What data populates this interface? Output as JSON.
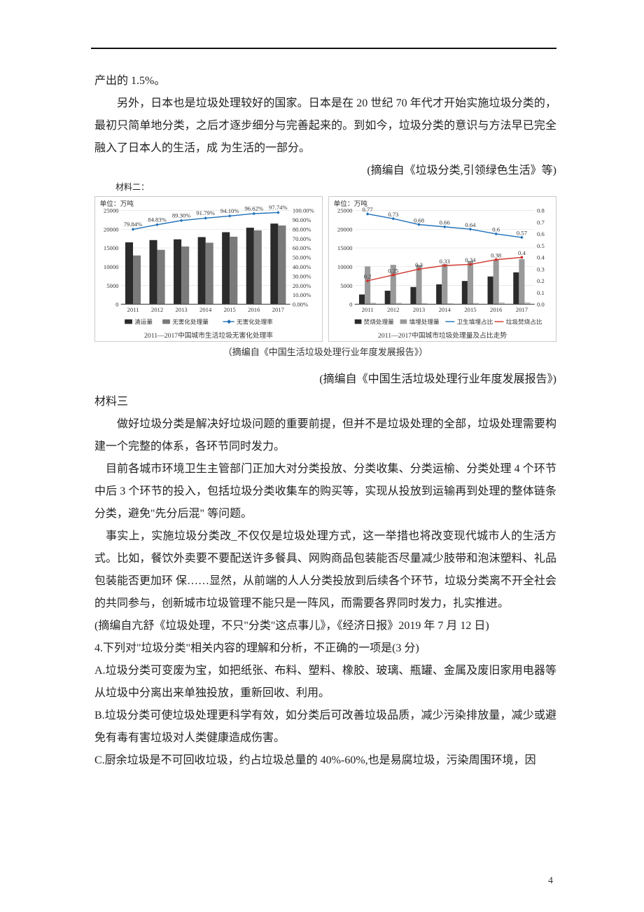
{
  "body": {
    "p1": "产出的 1.5%。",
    "p2": "另外，日本也是垃圾处理较好的国家。日本是在 20 世纪 70 年代才开始实施垃圾分类的，最初只简单地分类，之后才逐步细分与完善起来的。到如今，垃圾分类的意识与方法早已完全融入了日本人的生活，成 为生活的一部分。",
    "p3_src": "(摘编自《垃圾分类,引领绿色生活》等)",
    "mat2_label": "材料二：",
    "fig_src_inner": "（摘编自《中国生活垃圾处理行业年度发展报告》）",
    "fig_src_line": "(摘编自《中国生活垃圾处理行业年度发展报告》)",
    "mat3_label": "材料三",
    "p4": "做好垃圾分类是解决好垃圾问题的重要前提，但并不是垃圾处理的全部，垃圾处理需要构建一个完整的体系，各环节同时发力。",
    "p5": "目前各城市环境卫生主管部门正加大对分类投放、分类收集、分类运榆、分类处理 4 个环节中后 3 个环节的投入，包括垃圾分类收集车的购买等，实现从投放到运输再到处理的整体链条分类，避免\"先分后混\"  等问题。",
    "p6": "事实上，实施垃圾分类改_不仅仅是垃圾处理方式，这一举措也将改变现代城市人的生活方式。比如，餐饮外卖要不要配送许多餐具、网购商品包装能否尽量减少肢带和泡沫塑料、礼品包装能否更加环  保……显然，从前端的人人分类投放到后续各个环节，垃圾分类离不开全社会的共同参与，创新城市垃圾管理不能只是一阵风，而需要各界同时发力，扎实推进。",
    "p6_src": "(摘编自亢舒《垃圾处理，不只\"分类\"这点事儿》，《经济日报》2019 年 7 月 12 日)",
    "q4": "4.下列对\"垃圾分类\"相关内容的理解和分析，不正确的一项是(3 分)",
    "optA": "A.垃圾分类可变废为宝，如把纸张、布料、塑料、橡胶、玻璃、瓶罐、金属及废旧家用电器等从垃圾中分离出来单独投放，重新回收、利用。",
    "optB": "B.垃圾分类可使垃圾处理更科学有效，如分类后可改善垃圾品质，减少污染排放量，减少或避免有毒有害垃圾对人类健康造成伤害。",
    "optC": "C.厨余垃圾是不可回收垃圾，约占垃圾总量的 40%-60%,也是易腐垃圾，污染周围环境，因"
  },
  "page_number": "4",
  "chart_left": {
    "type": "bar+line",
    "unit_label": "单位：万吨",
    "years": [
      "2011",
      "2012",
      "2013",
      "2014",
      "2015",
      "2016",
      "2017"
    ],
    "bar1_values": [
      16500,
      17100,
      17300,
      17900,
      19200,
      20400,
      21500
    ],
    "bar2_values": [
      13000,
      14500,
      15400,
      16400,
      18000,
      19700,
      21000
    ],
    "line_values_pct": [
      79.84,
      84.83,
      89.3,
      91.79,
      94.1,
      96.62,
      97.74
    ],
    "y_left_max": 25000,
    "y_left_step": 5000,
    "y_right_max": 100,
    "y_right_step": 10,
    "legend": {
      "bar1": "清运量",
      "bar2": "无害化处理量",
      "line": "无害化处理率"
    },
    "caption": "2011—2017中国城市生活垃圾无害化处理率",
    "colors": {
      "bar1": "#2b2b2b",
      "bar2": "#7a7a7a",
      "line": "#1e70b8",
      "grid": "#dcdcdc",
      "axis": "#444444",
      "label": "#333333"
    },
    "fontsize": 9
  },
  "chart_right": {
    "type": "bar+2lines",
    "unit_label": "单位：万吨",
    "years": [
      "2011",
      "2012",
      "2013",
      "2014",
      "2015",
      "2016",
      "2017"
    ],
    "bar1_values": [
      2600,
      3600,
      4600,
      5300,
      6200,
      7400,
      8500
    ],
    "bar2_values": [
      10100,
      10500,
      10500,
      10700,
      11500,
      11900,
      12000
    ],
    "bar3_values": [
      430,
      400,
      320,
      240,
      350,
      500,
      530
    ],
    "line_landfill": [
      0.77,
      0.73,
      0.68,
      0.66,
      0.64,
      0.6,
      0.57
    ],
    "line_incin": [
      0.2,
      0.25,
      0.3,
      0.33,
      0.34,
      0.38,
      0.4
    ],
    "y_left_max": 25000,
    "y_left_step": 5000,
    "y_right_max": 0.8,
    "y_right_step": 0.1,
    "legend": {
      "bar1": "焚烧处理量",
      "bar2": "填埋处理量",
      "bar3": "卫生填埋占比",
      "line1": "垃圾焚烧占比"
    },
    "caption": "2011—2017中国城市垃圾处理量及占比走势",
    "colors": {
      "bar1": "#2b2b2b",
      "bar2": "#9a9a9a",
      "bar3": "#c9c9c9",
      "line1": "#1e70b8",
      "line2": "#d0342c",
      "grid": "#dcdcdc",
      "axis": "#444444",
      "label": "#333333"
    },
    "fontsize": 9
  }
}
